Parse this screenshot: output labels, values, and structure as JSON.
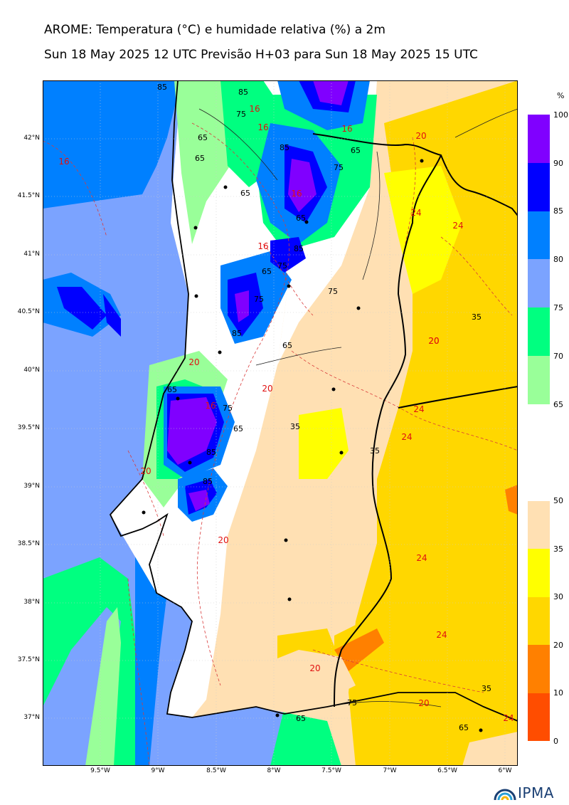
{
  "header": {
    "title": "AROME: Temperatura (°C) e humidade relativa (%) a 2m",
    "subtitle": "Sun 18 May 2025 12 UTC Previsão H+03 para Sun 18 May 2025 15 UTC"
  },
  "colorbar_humidity": {
    "unit": "%",
    "ticks": [
      "100",
      "90",
      "85",
      "80",
      "75",
      "70",
      "65"
    ],
    "bands": [
      {
        "from": 90,
        "to": 100,
        "color": "#8000ff"
      },
      {
        "from": 85,
        "to": 90,
        "color": "#0000ff"
      },
      {
        "from": 80,
        "to": 85,
        "color": "#0080ff"
      },
      {
        "from": 75,
        "to": 80,
        "color": "#7ba3ff"
      },
      {
        "from": 70,
        "to": 75,
        "color": "#00ff80"
      },
      {
        "from": 65,
        "to": 70,
        "color": "#99ff99"
      }
    ]
  },
  "colorbar_temperature": {
    "ticks": [
      "50",
      "35",
      "30",
      "20",
      "10",
      "0"
    ],
    "bands": [
      {
        "from": 35,
        "to": 50,
        "color": "#ffe0b3"
      },
      {
        "from": 30,
        "to": 35,
        "color": "#ffff00"
      },
      {
        "from": 20,
        "to": 30,
        "color": "#ffd700"
      },
      {
        "from": 10,
        "to": 20,
        "color": "#ff8000"
      },
      {
        "from": 0,
        "to": 10,
        "color": "#ff4d00"
      }
    ]
  },
  "axes": {
    "y_ticks": [
      "42°N",
      "41.5°N",
      "41°N",
      "40.5°N",
      "40°N",
      "39.5°N",
      "39°N",
      "38.5°N",
      "38°N",
      "37.5°N",
      "37°N"
    ],
    "x_ticks": [
      "9.5°W",
      "9°W",
      "8.5°W",
      "8°W",
      "7.5°W",
      "7°W",
      "6.5°W",
      "6°W"
    ]
  },
  "map_labels": {
    "humidity_contours": [
      "85",
      "85",
      "75",
      "65",
      "65",
      "65",
      "85",
      "75",
      "65",
      "65",
      "85",
      "75",
      "65",
      "75",
      "75",
      "85",
      "65",
      "65",
      "85",
      "75",
      "85",
      "65",
      "35",
      "35",
      "35",
      "35",
      "75",
      "65",
      "65"
    ],
    "temperature_contours": [
      "16",
      "20",
      "16",
      "16",
      "16",
      "16",
      "16",
      "20",
      "20",
      "16",
      "20",
      "20",
      "20",
      "24",
      "24",
      "24",
      "24",
      "24",
      "20",
      "20",
      "20",
      "24",
      "24"
    ]
  },
  "logo": {
    "text": "IPMA"
  }
}
